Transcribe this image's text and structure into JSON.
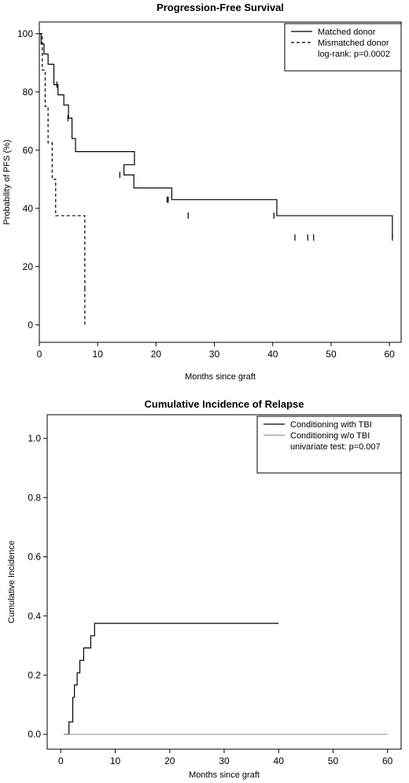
{
  "chart_data": [
    {
      "type": "line",
      "title": "Progression-Free Survival",
      "xlabel": "Months since graft",
      "ylabel": "Probability of PFS (%)",
      "xlim": [
        0,
        62
      ],
      "ylim": [
        -6,
        104
      ],
      "xticks": [
        0,
        10,
        20,
        30,
        40,
        50,
        60
      ],
      "xtick_labels": [
        "0",
        "10",
        "20",
        "30",
        "40",
        "50",
        "60"
      ],
      "yticks": [
        0,
        20,
        40,
        60,
        80,
        100
      ],
      "ytick_labels": [
        "0",
        "20",
        "40",
        "60",
        "80",
        "100"
      ],
      "legend_position": "top-right",
      "legend": {
        "entries": [
          {
            "label": "Matched donor",
            "style": "solid"
          },
          {
            "label": "Mismatched donor",
            "style": "dashed"
          }
        ],
        "note": "log-rank: p=0.0002"
      },
      "series": [
        {
          "name": "Matched donor",
          "style": "solid",
          "step_x": [
            0,
            0.3,
            0.8,
            1.5,
            2.5,
            3.2,
            4.2,
            5.0,
            5.6,
            6.2,
            16.3,
            14.5,
            16.2,
            22.7,
            40.7,
            60.5
          ],
          "step_y": [
            100,
            96.5,
            93,
            89.5,
            82.5,
            79,
            75.5,
            71,
            64,
            59.5,
            55,
            51.5,
            47,
            43,
            37.5,
            30
          ],
          "censor_x": [
            3.0,
            4.9,
            13.8,
            21.9,
            22.1,
            25.5,
            40.2,
            43.8,
            46.0,
            47.0,
            60.5
          ],
          "censor_y": [
            82.5,
            71,
            51.5,
            43,
            43,
            37.5,
            37.5,
            30,
            30,
            30,
            30
          ]
        },
        {
          "name": "Mismatched donor",
          "style": "dashed",
          "step_x": [
            0,
            0.5,
            1.0,
            1.5,
            2.2,
            2.8,
            7.8
          ],
          "step_y": [
            100,
            87.5,
            75,
            62.5,
            50,
            37.5,
            12.5
          ],
          "end_x": 7.8,
          "end_y": 0
        }
      ]
    },
    {
      "type": "line",
      "title": "Cumulative Incidence of Relapse",
      "xlabel": "Months since graft",
      "ylabel": "Cumulative Incidence",
      "xlim": [
        -2.5,
        62.5
      ],
      "ylim": [
        -0.05,
        1.08
      ],
      "xticks": [
        0,
        10,
        20,
        30,
        40,
        50,
        60
      ],
      "xtick_labels": [
        "0",
        "10",
        "20",
        "30",
        "40",
        "50",
        "60"
      ],
      "yticks": [
        0.0,
        0.2,
        0.4,
        0.6,
        0.8,
        1.0
      ],
      "ytick_labels": [
        "0.0",
        "0.2",
        "0.4",
        "0.6",
        "0.8",
        "1.0"
      ],
      "legend_position": "top-right",
      "legend": {
        "entries": [
          {
            "label": "Conditioning with TBI",
            "style": "solid-dark"
          },
          {
            "label": "Conditioning w/o TBI",
            "style": "solid-light"
          }
        ],
        "note": "univariate test: p=0.007"
      },
      "series": [
        {
          "name": "Conditioning with TBI",
          "color": "#000000",
          "step_x": [
            0.7,
            1.5,
            2.2,
            2.5,
            3.0,
            3.5,
            4.2,
            5.5,
            6.2,
            40.0
          ],
          "step_y": [
            0.0,
            0.042,
            0.125,
            0.167,
            0.208,
            0.25,
            0.292,
            0.333,
            0.375,
            0.375
          ]
        },
        {
          "name": "Conditioning w/o TBI",
          "color": "#9a9a9a",
          "step_x": [
            0.5,
            60.0
          ],
          "step_y": [
            0.0,
            0.0
          ]
        }
      ]
    }
  ]
}
